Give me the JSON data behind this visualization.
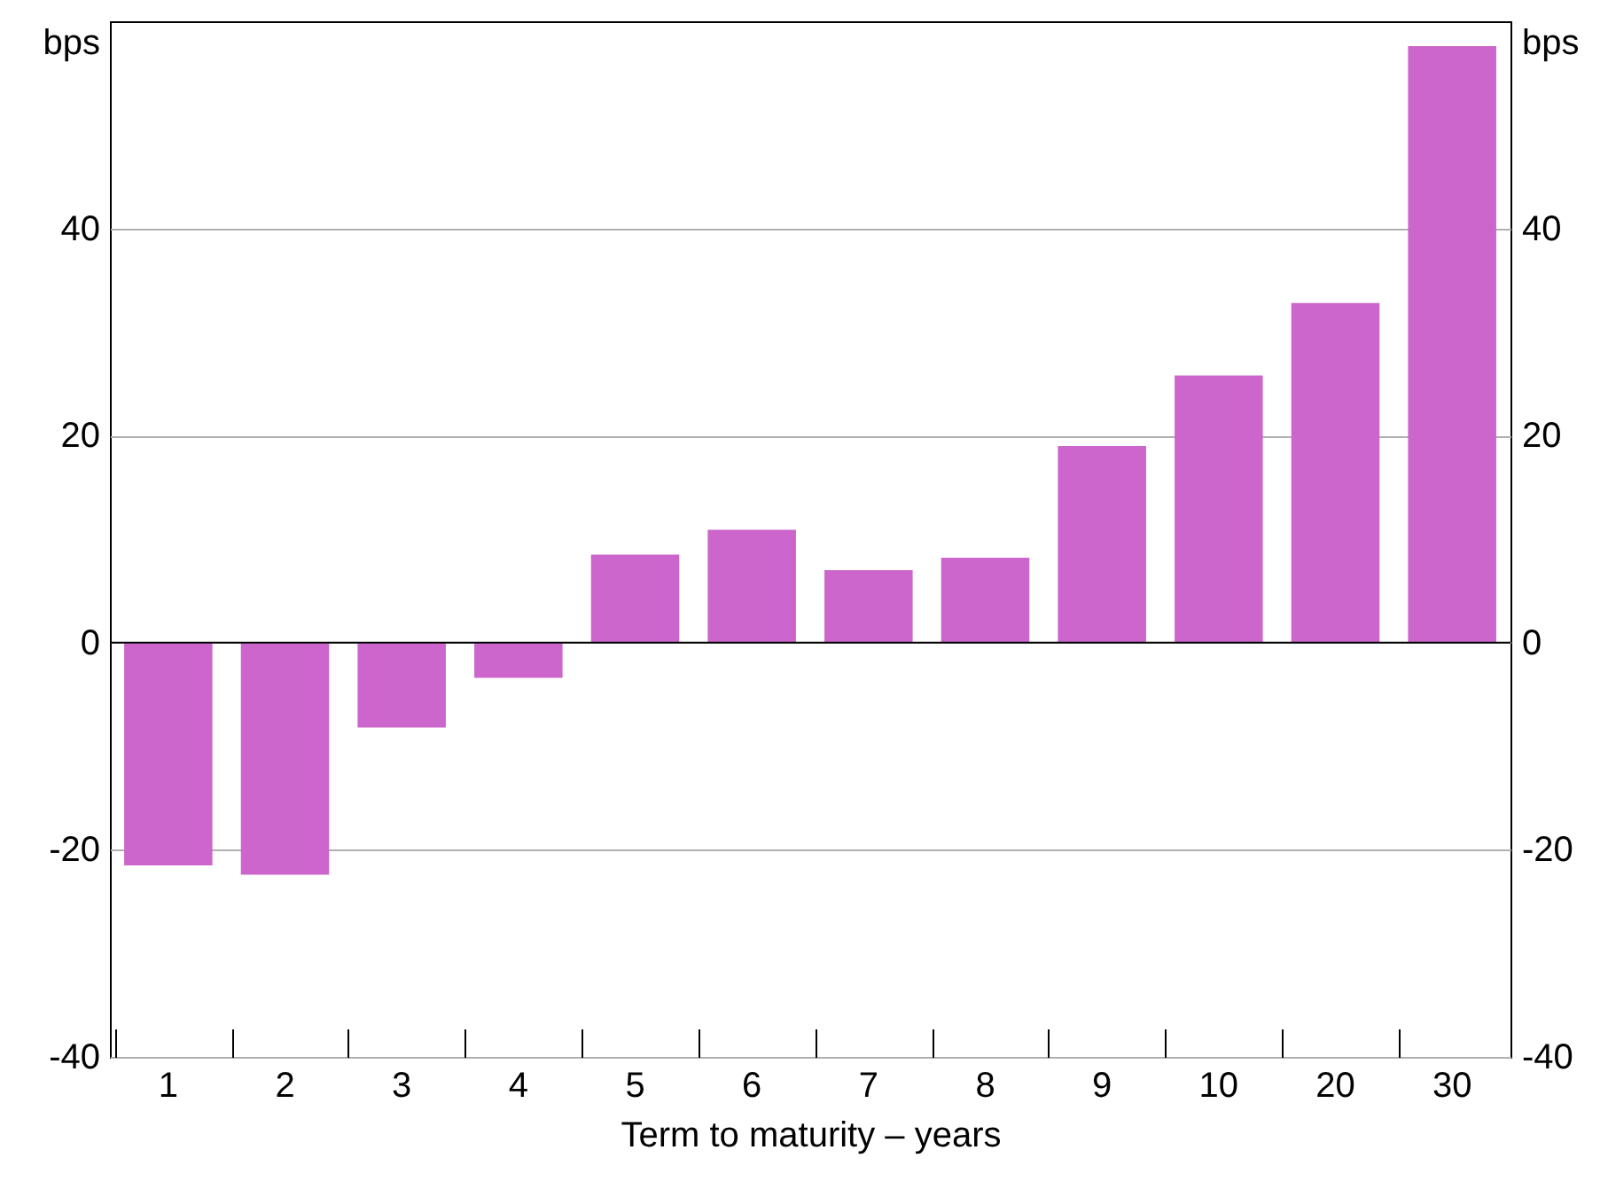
{
  "chart_data": {
    "type": "bar",
    "xlabel": "Term to maturity – years",
    "ylabel": "bps",
    "y2label": "bps",
    "categories": [
      "1",
      "2",
      "3",
      "4",
      "5",
      "6",
      "7",
      "8",
      "9",
      "10",
      "20",
      "30"
    ],
    "values": [
      -21.5,
      -22.4,
      -8.2,
      -3.4,
      8.5,
      10.9,
      7.0,
      8.2,
      19.0,
      25.8,
      32.8,
      57.6
    ],
    "color": "#cc66cc",
    "ylim": [
      -40,
      60
    ],
    "yticks": [
      -40,
      -20,
      0,
      20,
      40
    ],
    "y2lim": [
      -40,
      60
    ],
    "y2ticks": [
      -40,
      -20,
      0,
      20,
      40
    ],
    "grid": "y",
    "ref_lines": [
      {
        "axis": "y",
        "value": 0,
        "color": "#000000"
      }
    ]
  }
}
